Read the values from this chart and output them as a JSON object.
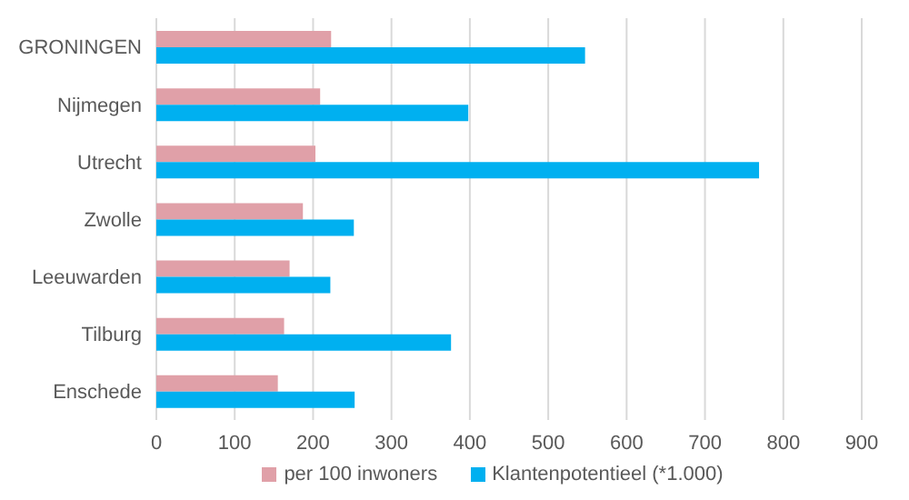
{
  "chart_data": {
    "type": "bar",
    "orientation": "horizontal",
    "categories": [
      "GRONINGEN",
      "Nijmegen",
      "Utrecht",
      "Zwolle",
      "Leeuwarden",
      "Tilburg",
      "Enschede"
    ],
    "series": [
      {
        "name": "per 100 inwoners",
        "color": "#e0a0a8",
        "values": [
          223,
          209,
          203,
          187,
          170,
          163,
          155
        ]
      },
      {
        "name": "Klantenpotentieel (*1.000)",
        "color": "#00b0f0",
        "values": [
          547,
          398,
          769,
          252,
          222,
          376,
          253
        ]
      }
    ],
    "xlim": [
      0,
      900
    ],
    "xticks": [
      0,
      100,
      200,
      300,
      400,
      500,
      600,
      700,
      800,
      900
    ],
    "grid": "x",
    "legend": "bottom"
  }
}
